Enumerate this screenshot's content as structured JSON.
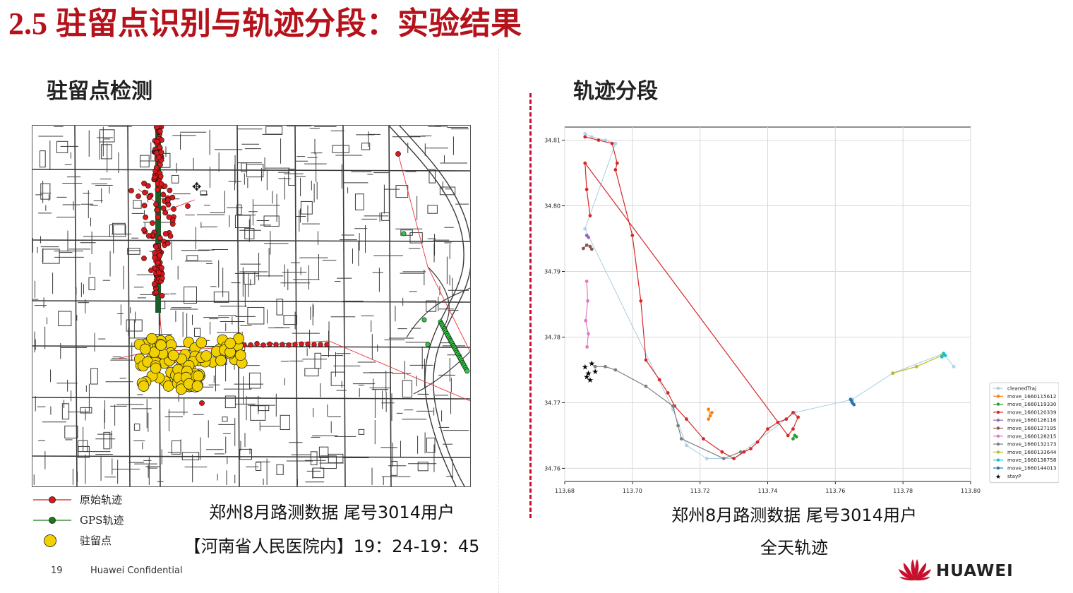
{
  "slide": {
    "title_num": "2.5",
    "title_text": "驻留点识别与轨迹分段：实验结果",
    "page_number": "19",
    "confidential": "Huawei Confidential",
    "logo_text": "HUAWEI",
    "accent_color": "#b5121b"
  },
  "left": {
    "section_title": "驻留点检测",
    "legend": [
      {
        "label": "原始轨迹",
        "color": "#d7191c"
      },
      {
        "label": "GPS轨迹",
        "color": "#1a7a1a"
      },
      {
        "label": "驻留点",
        "color": "#f2d100"
      }
    ],
    "caption_line1": "郑州8月路测数据 尾号3014用户",
    "caption_line2": "【河南省人民医院内】19：24-19：45"
  },
  "right": {
    "section_title": "轨迹分段",
    "caption_line1": "郑州8月路测数据 尾号3014用户",
    "caption_line2": "全天轨迹"
  },
  "chart_data": {
    "type": "scatter",
    "xlim": [
      113.68,
      113.8
    ],
    "ylim": [
      34.758,
      34.812
    ],
    "x_ticks": [
      "113.68",
      "113.70",
      "113.72",
      "113.74",
      "113.76",
      "113.78",
      "113.80"
    ],
    "y_ticks": [
      "34.76",
      "34.77",
      "34.78",
      "34.79",
      "34.80",
      "34.81"
    ],
    "grid": true,
    "legend_position": "right",
    "series": [
      {
        "name": "cleanedTraj",
        "color": "#a6cee3",
        "x": [
          113.686,
          113.688,
          113.692,
          113.695,
          113.686,
          113.712,
          113.716,
          113.722,
          113.73,
          113.748,
          113.765,
          113.777,
          113.792,
          113.795
        ],
        "y": [
          34.811,
          34.8105,
          34.81,
          34.8095,
          34.7965,
          34.769,
          34.7635,
          34.7615,
          34.7615,
          34.7685,
          34.7705,
          34.7745,
          34.7775,
          34.7755
        ]
      },
      {
        "name": "move_1660115612",
        "color": "#ff7f0e",
        "x": [
          113.7225,
          113.723,
          113.7235,
          113.7225
        ],
        "y": [
          34.769,
          34.768,
          34.7685,
          34.7675
        ]
      },
      {
        "name": "move_1660119330",
        "color": "#2ca02c",
        "x": [
          113.7475,
          113.748,
          113.7485
        ],
        "y": [
          34.7645,
          34.765,
          34.7648
        ]
      },
      {
        "name": "move_1660120339",
        "color": "#d62728",
        "x": [
          113.686,
          113.69,
          113.694,
          113.6955,
          113.695,
          113.7,
          113.7025,
          113.704,
          113.708,
          113.7105,
          113.7125,
          113.716,
          113.721,
          113.7265,
          113.73,
          113.733,
          113.735,
          113.737,
          113.74,
          113.743,
          113.7455,
          113.7475,
          113.749,
          113.7475,
          113.746,
          113.686,
          113.6865,
          113.6875
        ],
        "y": [
          34.8105,
          34.81,
          34.8095,
          34.8065,
          34.8055,
          34.7955,
          34.7855,
          34.7765,
          34.7735,
          34.7715,
          34.7695,
          34.7675,
          34.7645,
          34.7625,
          34.7615,
          34.7625,
          34.763,
          34.764,
          34.766,
          34.767,
          34.7675,
          34.7685,
          34.7678,
          34.766,
          34.765,
          34.8065,
          34.8025,
          34.7985
        ]
      },
      {
        "name": "move_1660126116",
        "color": "#9467bd",
        "x": [
          113.6865,
          113.687
        ],
        "y": [
          34.7955,
          34.7952
        ]
      },
      {
        "name": "move_1660127195",
        "color": "#8c564b",
        "x": [
          113.6855,
          113.6865,
          113.6875,
          113.688
        ],
        "y": [
          34.7935,
          34.794,
          34.7938,
          34.7934
        ]
      },
      {
        "name": "move_1660128215",
        "color": "#e377c2",
        "x": [
          113.6865,
          113.6868,
          113.6862,
          113.687,
          113.6866
        ],
        "y": [
          34.7885,
          34.7855,
          34.7825,
          34.7805,
          34.7785
        ]
      },
      {
        "name": "move_1660132173",
        "color": "#7f7f7f",
        "x": [
          113.689,
          113.692,
          113.695,
          113.704,
          113.712,
          113.7135,
          113.7145,
          113.727,
          113.732
        ],
        "y": [
          34.7755,
          34.7755,
          34.775,
          34.7725,
          34.7695,
          34.7665,
          34.7645,
          34.7615,
          34.7625
        ]
      },
      {
        "name": "move_1660133644",
        "color": "#bcbd22",
        "x": [
          113.777,
          113.784,
          113.7915
        ],
        "y": [
          34.7745,
          34.7755,
          34.7772
        ]
      },
      {
        "name": "move_1660138758",
        "color": "#17becf",
        "x": [
          113.792,
          113.7925,
          113.7915
        ],
        "y": [
          34.7775,
          34.7772,
          34.777
        ]
      },
      {
        "name": "move_1660144013",
        "color": "#1f77b4",
        "x": [
          113.7645,
          113.765,
          113.7655,
          113.7648
        ],
        "y": [
          34.7705,
          34.77,
          34.7697,
          34.7703
        ]
      },
      {
        "name": "stayP",
        "color": "#000000",
        "x": [
          113.686,
          113.687,
          113.688,
          113.689,
          113.6875,
          113.6865
        ],
        "y": [
          34.7755,
          34.7745,
          34.776,
          34.7748,
          34.7735,
          34.774
        ]
      }
    ]
  }
}
